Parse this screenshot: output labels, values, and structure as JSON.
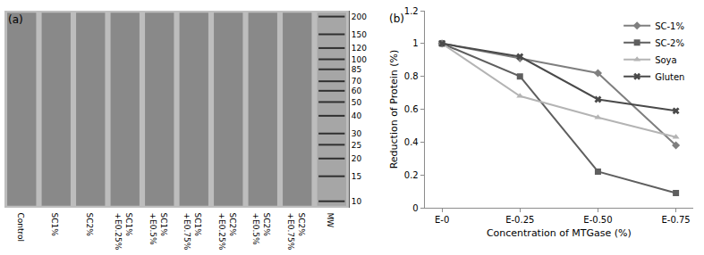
{
  "chart_data": [
    {
      "type": "gel",
      "title": "(a)",
      "categories": [
        "Control",
        "SC1%",
        "SC2%",
        "SC1%\n+E0.25%",
        "SC1%\n+E0.5%",
        "SC1%\n+E0.75%",
        "SC2%\n+E0.25%",
        "SC2%\n+E0.5%",
        "SC2%\n+E0.75%",
        "MW"
      ],
      "log": "y",
      "ylim": [
        9,
        220
      ],
      "yticks": [
        200,
        150,
        120,
        100,
        85,
        70,
        60,
        50,
        40,
        30,
        25,
        20,
        15,
        10
      ],
      "grid": false
    },
    {
      "type": "line",
      "title": "(b)",
      "x_label": "Concentration of MTGase (%)",
      "y_label": "Reduction of Protein (%)",
      "categories": [
        "E-0",
        "E-0.25",
        "E-0.50",
        "E-0.75"
      ],
      "series": [
        {
          "name": "SC-1%",
          "color": "#7f7f7f",
          "marker": "diamond",
          "values": [
            1,
            0.91,
            0.82,
            0.38
          ]
        },
        {
          "name": "SC-2%",
          "color": "#5f5f5f",
          "marker": "square",
          "values": [
            1,
            0.8,
            0.22,
            0.09
          ]
        },
        {
          "name": "Soya",
          "color": "#b4b4b4",
          "marker": "triangle-up",
          "values": [
            1,
            0.68,
            0.55,
            0.43
          ]
        },
        {
          "name": "Gluten",
          "color": "#4a4a4a",
          "marker": "x",
          "values": [
            1,
            0.92,
            0.66,
            0.59
          ]
        }
      ],
      "ylim": [
        0,
        1.2
      ],
      "yticks": [
        0,
        0.2,
        0.4,
        0.6,
        0.8,
        1,
        1.2
      ],
      "grid": false,
      "legend": "upper right"
    }
  ]
}
